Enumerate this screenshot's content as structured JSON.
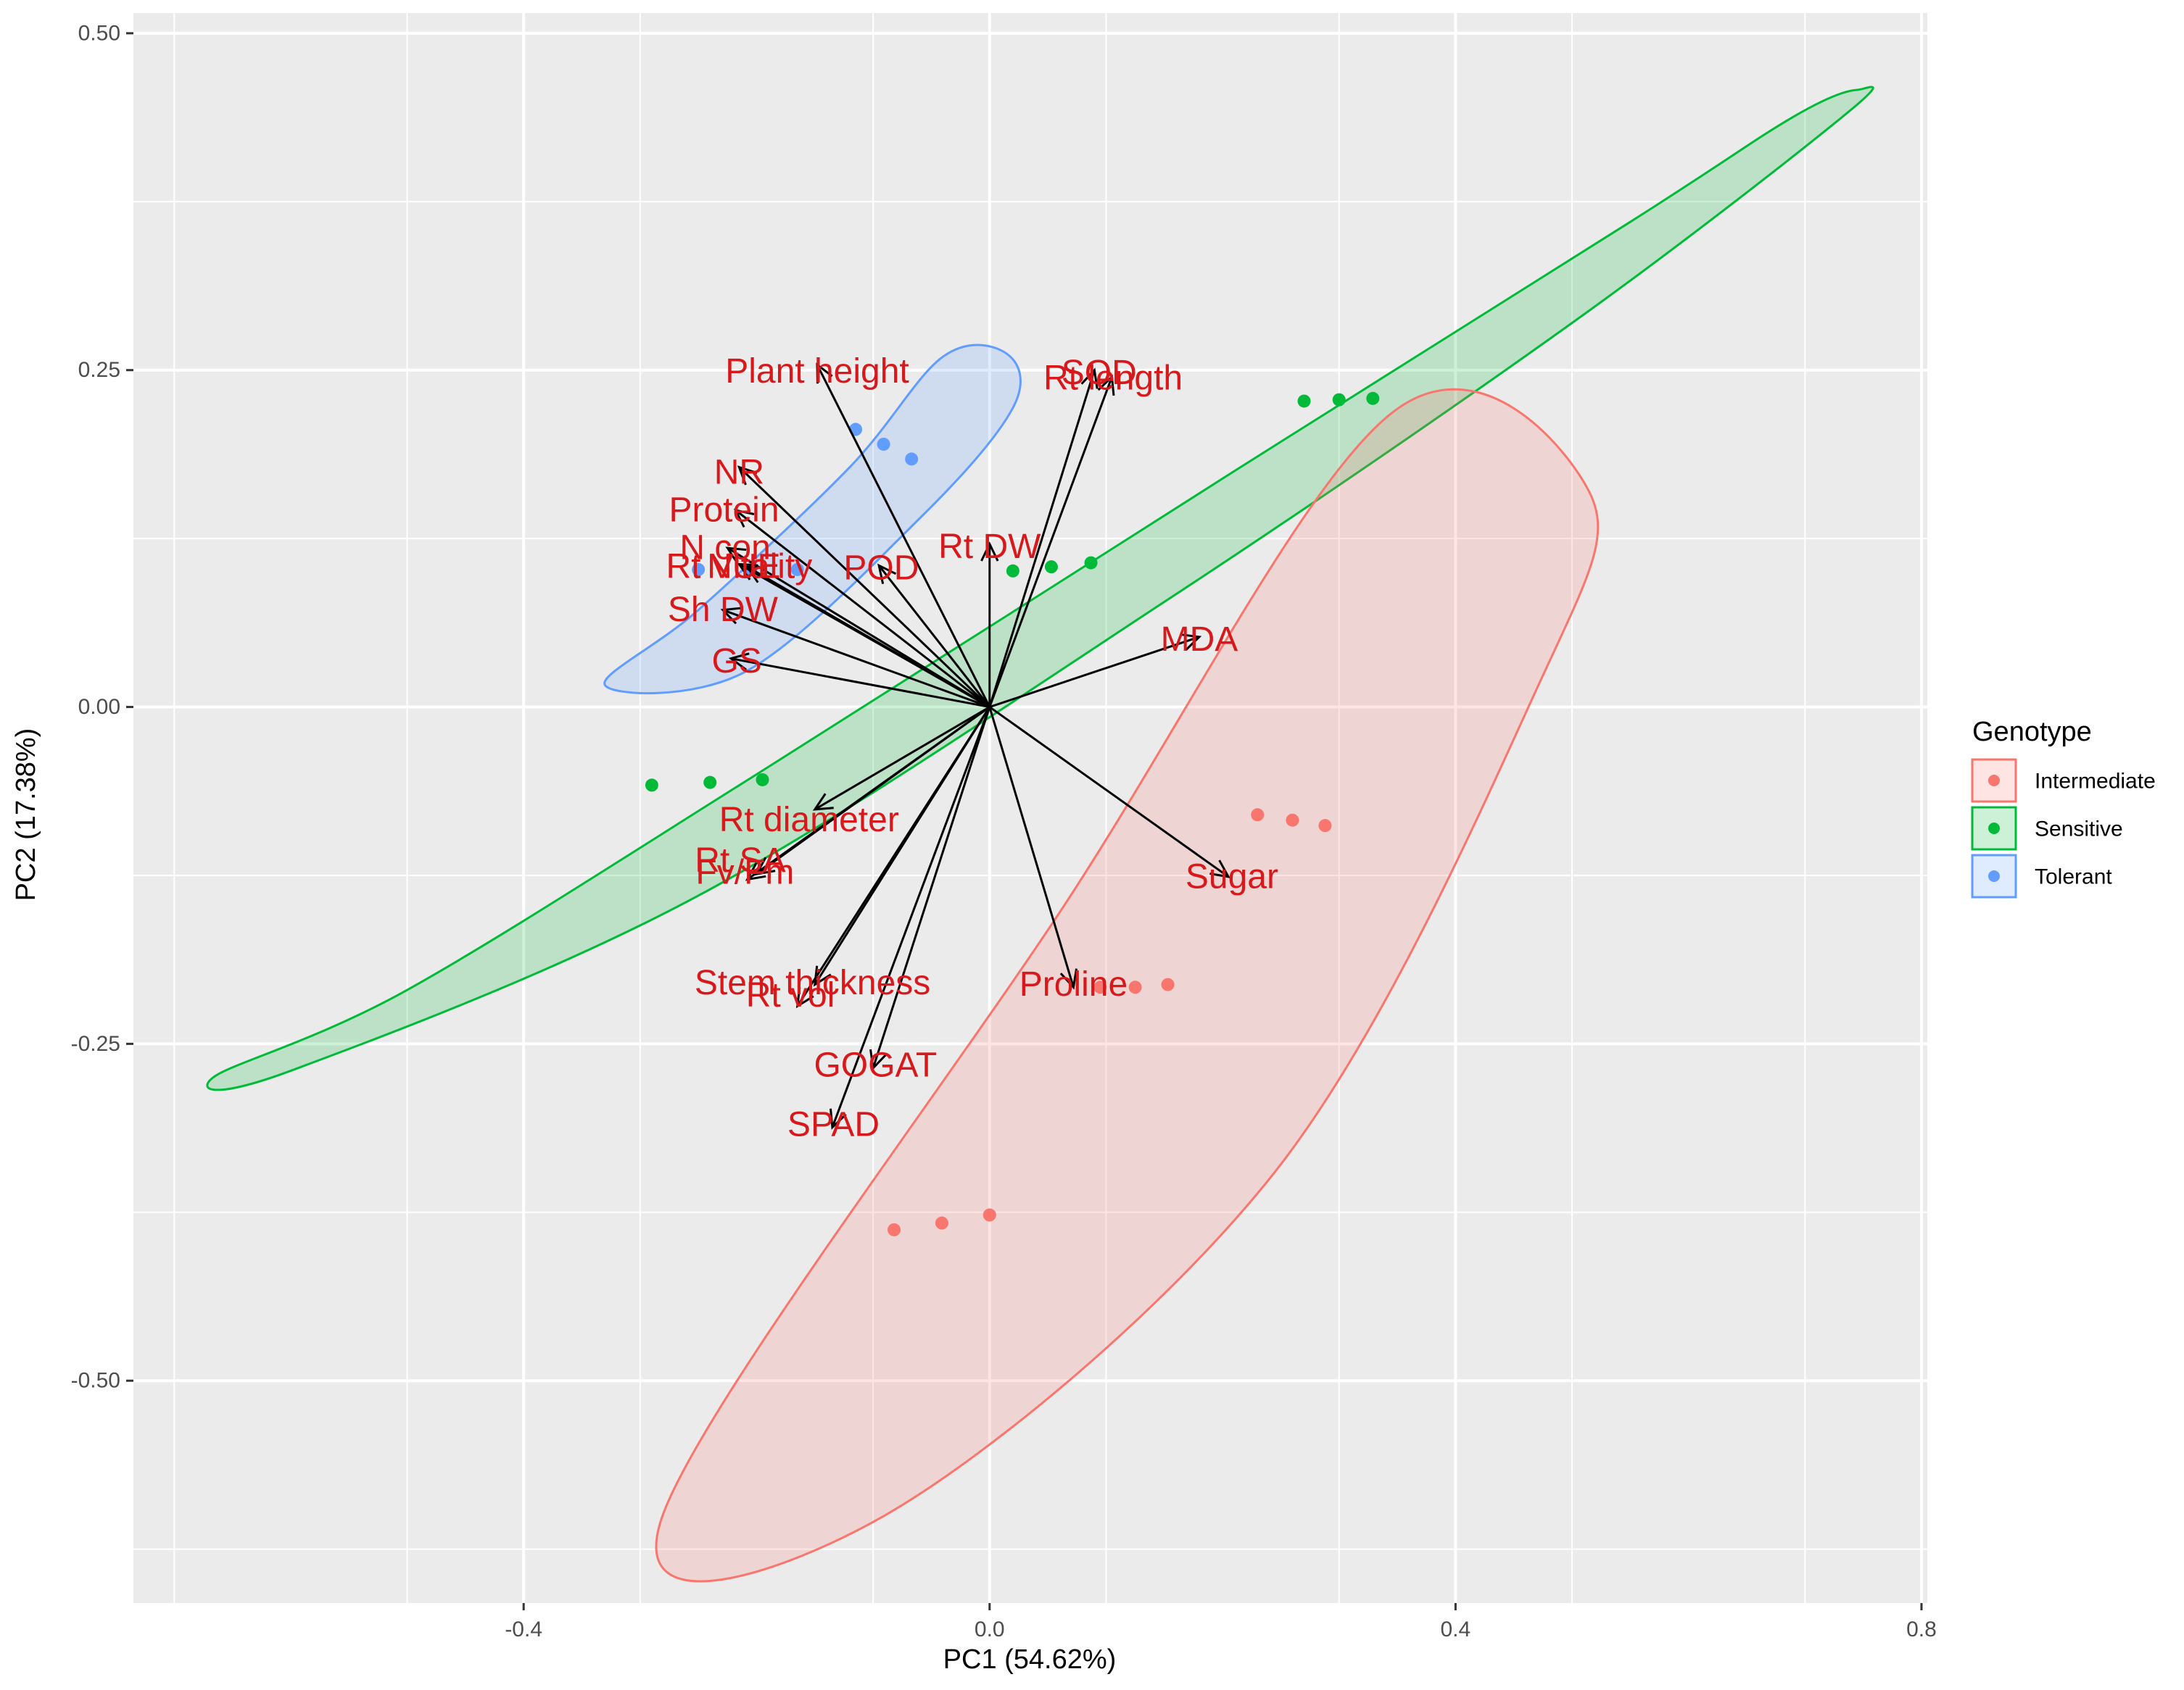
{
  "chart_data": {
    "type": "scatter",
    "subtype": "pca-biplot",
    "xlabel": "PC1 (54.62%)",
    "ylabel": "PC2 (17.38%)",
    "xlim": [
      -0.735,
      0.805
    ],
    "ylim": [
      -0.665,
      0.515
    ],
    "x_ticks": [
      -0.4,
      0.0,
      0.4,
      0.8
    ],
    "x_tick_labels": [
      "-0.4",
      "0.0",
      "0.4",
      "0.8"
    ],
    "y_ticks": [
      -0.5,
      -0.25,
      0.0,
      0.25,
      0.5
    ],
    "y_tick_labels": [
      "-0.50",
      "-0.25",
      "0.00",
      "0.25",
      "0.50"
    ],
    "grid": true,
    "legend": {
      "title": "Genotype",
      "placement": "right",
      "entries": [
        "Intermediate",
        "Sensitive",
        "Tolerant"
      ]
    },
    "colors": {
      "Intermediate": "#F8766D",
      "Sensitive": "#00BA38",
      "Tolerant": "#619CFF",
      "panel": "#EBEBEB",
      "grid": "#FFFFFF",
      "arrow": "#000000",
      "label": "#D7191C"
    },
    "groups": [
      {
        "name": "Intermediate",
        "points": [
          {
            "x": 0.23,
            "y": -0.08
          },
          {
            "x": 0.26,
            "y": -0.084
          },
          {
            "x": 0.288,
            "y": -0.088
          },
          {
            "x": 0.095,
            "y": -0.208
          },
          {
            "x": 0.125,
            "y": -0.208
          },
          {
            "x": 0.153,
            "y": -0.206
          },
          {
            "x": -0.082,
            "y": -0.388
          },
          {
            "x": -0.041,
            "y": -0.383
          },
          {
            "x": 0.0,
            "y": -0.377
          }
        ],
        "ellipse": [
          [
            -0.283,
            -0.606
          ],
          [
            0.062,
            -0.15
          ],
          [
            0.345,
            0.218
          ],
          [
            0.514,
            0.161
          ],
          [
            0.47,
            0.014
          ],
          [
            0.245,
            -0.345
          ],
          [
            -0.09,
            -0.6
          ],
          [
            -0.283,
            -0.606
          ]
        ]
      },
      {
        "name": "Sensitive",
        "points": [
          {
            "x": 0.27,
            "y": 0.227
          },
          {
            "x": 0.3,
            "y": 0.228
          },
          {
            "x": 0.329,
            "y": 0.229
          },
          {
            "x": 0.02,
            "y": 0.101
          },
          {
            "x": 0.053,
            "y": 0.104
          },
          {
            "x": 0.087,
            "y": 0.107
          },
          {
            "x": -0.29,
            "y": -0.058
          },
          {
            "x": -0.24,
            "y": -0.056
          },
          {
            "x": -0.195,
            "y": -0.054
          }
        ],
        "ellipse": [
          [
            -0.665,
            -0.274
          ],
          [
            -0.5,
            -0.21
          ],
          [
            -0.2,
            -0.05
          ],
          [
            0.21,
            0.175
          ],
          [
            0.55,
            0.36
          ],
          [
            0.69,
            0.438
          ],
          [
            0.745,
            0.458
          ],
          [
            0.735,
            0.44
          ],
          [
            0.5,
            0.285
          ],
          [
            0.15,
            0.078
          ],
          [
            -0.25,
            -0.14
          ],
          [
            -0.6,
            -0.27
          ],
          [
            -0.665,
            -0.274
          ]
        ]
      },
      {
        "name": "Tolerant",
        "points": [
          {
            "x": -0.115,
            "y": 0.206
          },
          {
            "x": -0.091,
            "y": 0.195
          },
          {
            "x": -0.067,
            "y": 0.184
          },
          {
            "x": -0.25,
            "y": 0.102
          },
          {
            "x": -0.205,
            "y": 0.102
          },
          {
            "x": -0.165,
            "y": 0.102
          }
        ],
        "ellipse": [
          [
            -0.33,
            0.016
          ],
          [
            -0.25,
            0.072
          ],
          [
            -0.12,
            0.178
          ],
          [
            -0.04,
            0.26
          ],
          [
            0.015,
            0.262
          ],
          [
            0.02,
            0.222
          ],
          [
            -0.06,
            0.14
          ],
          [
            -0.21,
            0.026
          ],
          [
            -0.33,
            0.016
          ]
        ]
      }
    ],
    "loadings": [
      {
        "name": "Plant height",
        "x": -0.148,
        "y": 0.254,
        "lx": -0.148,
        "ly": 0.249
      },
      {
        "name": "NR",
        "x": -0.215,
        "y": 0.178,
        "lx": -0.215,
        "ly": 0.174
      },
      {
        "name": "Protein",
        "x": -0.218,
        "y": 0.146,
        "lx": -0.228,
        "ly": 0.146
      },
      {
        "name": "N con",
        "x": -0.225,
        "y": 0.118,
        "lx": -0.227,
        "ly": 0.118
      },
      {
        "name": "NUE",
        "x": -0.215,
        "y": 0.106,
        "lx": -0.211,
        "ly": 0.104
      },
      {
        "name": "Rt Vitality",
        "x": -0.208,
        "y": 0.104,
        "lx": -0.215,
        "ly": 0.104
      },
      {
        "name": "POD",
        "x": -0.095,
        "y": 0.105,
        "lx": -0.093,
        "ly": 0.103
      },
      {
        "name": "Sh DW",
        "x": -0.229,
        "y": 0.072,
        "lx": -0.229,
        "ly": 0.072
      },
      {
        "name": "GS",
        "x": -0.222,
        "y": 0.036,
        "lx": -0.217,
        "ly": 0.034
      },
      {
        "name": "SOD",
        "x": 0.09,
        "y": 0.25,
        "lx": 0.094,
        "ly": 0.248
      },
      {
        "name": "Rt length",
        "x": 0.105,
        "y": 0.245,
        "lx": 0.106,
        "ly": 0.244
      },
      {
        "name": "Rt DW",
        "x": 0.0,
        "y": 0.121,
        "lx": 0.0,
        "ly": 0.119
      },
      {
        "name": "MDA",
        "x": 0.18,
        "y": 0.052,
        "lx": 0.18,
        "ly": 0.05
      },
      {
        "name": "Sugar",
        "x": 0.205,
        "y": -0.126,
        "lx": 0.208,
        "ly": -0.126
      },
      {
        "name": "Proline",
        "x": 0.072,
        "y": -0.208,
        "lx": 0.072,
        "ly": -0.206
      },
      {
        "name": "Rt diameter",
        "x": -0.15,
        "y": -0.076,
        "lx": -0.155,
        "ly": -0.084
      },
      {
        "name": "Rt SA",
        "x": -0.2,
        "y": -0.124,
        "lx": -0.214,
        "ly": -0.114
      },
      {
        "name": "Fv/Fm",
        "x": -0.208,
        "y": -0.128,
        "lx": -0.21,
        "ly": -0.123
      },
      {
        "name": "Stem thickness",
        "x": -0.15,
        "y": -0.206,
        "lx": -0.152,
        "ly": -0.205
      },
      {
        "name": "Rt vol",
        "x": -0.165,
        "y": -0.222,
        "lx": -0.171,
        "ly": -0.214
      },
      {
        "name": "GOGAT",
        "x": -0.1,
        "y": -0.268,
        "lx": -0.098,
        "ly": -0.266
      },
      {
        "name": "SPAD",
        "x": -0.135,
        "y": -0.312,
        "lx": -0.134,
        "ly": -0.31
      }
    ]
  }
}
